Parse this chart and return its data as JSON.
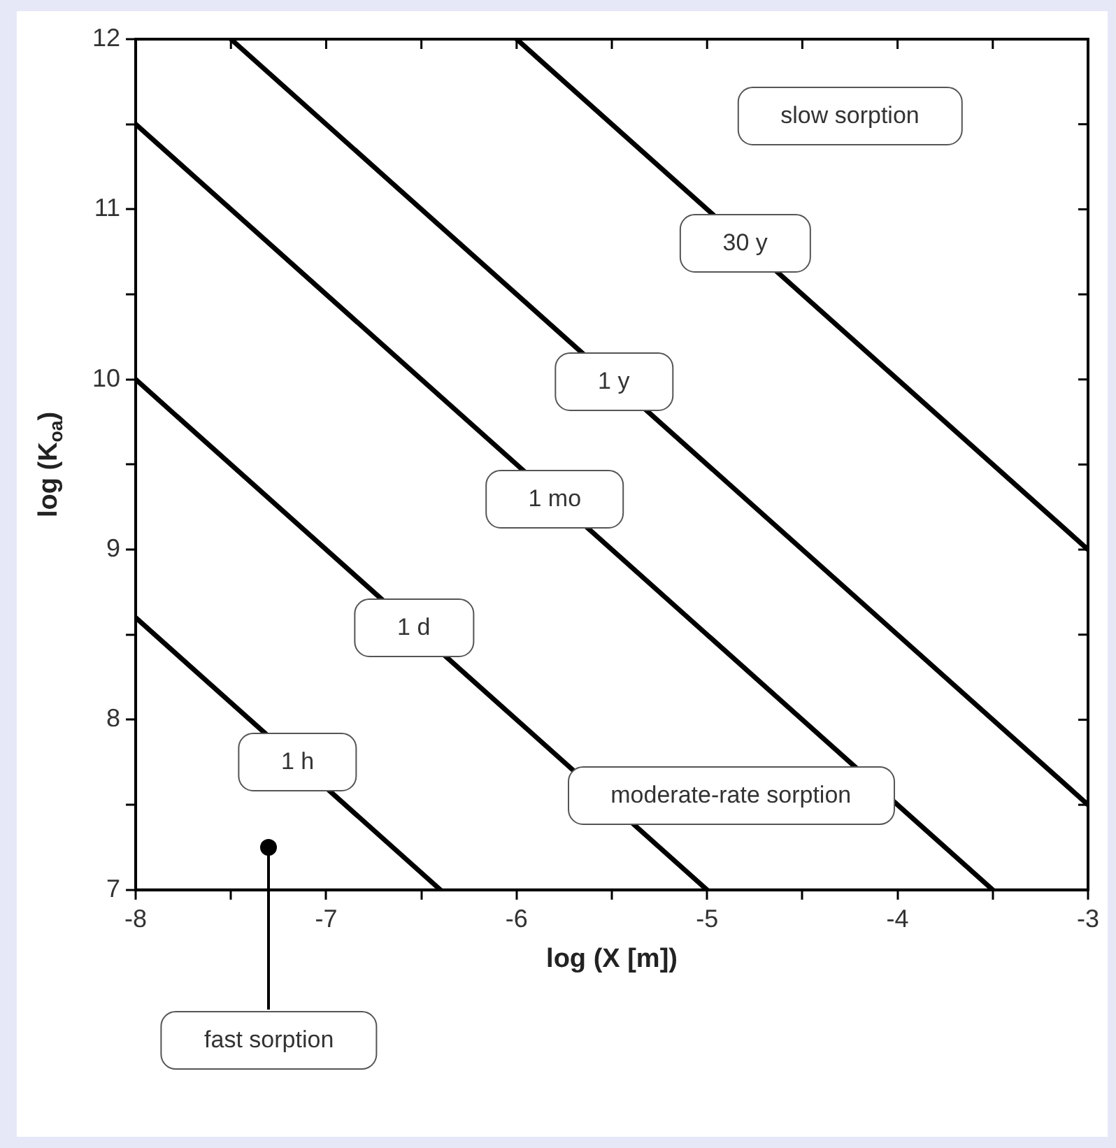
{
  "chart_data": {
    "type": "line",
    "xlabel": "log (X [m])",
    "ylabel": "log (K$_{oa}$)",
    "xlim": [
      -8,
      -3
    ],
    "ylim": [
      7,
      12
    ],
    "xticks": [
      -8,
      {
        "value": -7.5,
        "label": null
      },
      -7,
      {
        "value": -6.5,
        "label": null
      },
      -6,
      {
        "value": -5.5,
        "label": null
      },
      -5,
      {
        "value": -4.5,
        "label": null
      },
      -4,
      {
        "value": -3.5,
        "label": null
      },
      -3
    ],
    "yticks": [
      7,
      {
        "value": 7.5,
        "label": null
      },
      8,
      {
        "value": 8.5,
        "label": null
      },
      9,
      {
        "value": 9.5,
        "label": null
      },
      10,
      {
        "value": 10.5,
        "label": null
      },
      11,
      {
        "value": 11.5,
        "label": null
      },
      12
    ],
    "grid": false,
    "legend": false,
    "marker": "none",
    "line_style": "solid",
    "series": [
      {
        "color": "#000000",
        "x": [
          -8,
          -6.4
        ],
        "values": [
          8.6,
          7
        ]
      },
      {
        "color": "#000000",
        "x": [
          -8,
          -5
        ],
        "values": [
          10,
          7
        ]
      },
      {
        "color": "#000000",
        "x": [
          -8,
          -3.5
        ],
        "values": [
          11.5,
          7
        ]
      },
      {
        "color": "#000000",
        "x": [
          -7.5,
          -3
        ],
        "values": [
          12,
          7.5
        ]
      },
      {
        "color": "#000000",
        "x": [
          -6,
          -3
        ],
        "values": [
          12,
          9
        ]
      }
    ],
    "annotations": [
      {
        "text": "1 h",
        "x": -7.15,
        "y": 7.75
      },
      {
        "text": "1 d",
        "x": -6.54,
        "y": 8.54
      },
      {
        "text": "1 mo",
        "x": -5.8,
        "y": 9.3
      },
      {
        "text": "1 y",
        "x": -5.49,
        "y": 9.99
      },
      {
        "text": "30 y",
        "x": -4.8,
        "y": 10.8
      },
      "slow sorption",
      "moderate-rate sorption",
      "fast sorption"
    ]
  }
}
